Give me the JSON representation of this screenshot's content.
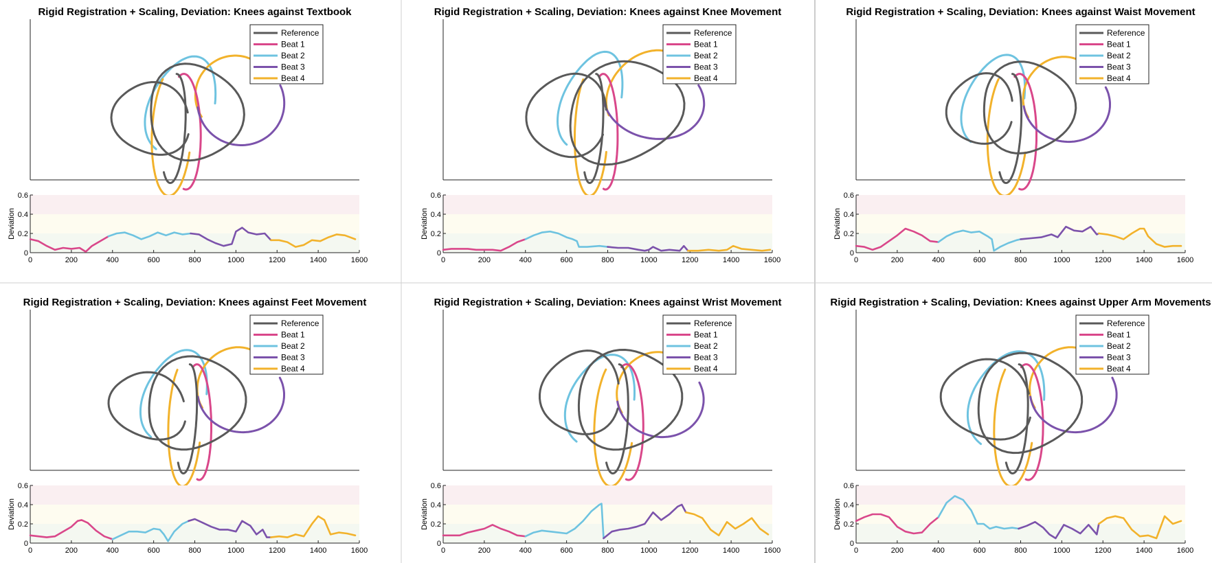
{
  "colors": {
    "reference": "#595959",
    "beat1": "#D9478A",
    "beat2": "#6EC3E0",
    "beat3": "#7B52AB",
    "beat4": "#F2B22B",
    "band_high": "#FAEFF1",
    "band_mid": "#FEFCF0",
    "band_low": "#F4F8F1"
  },
  "legend": [
    "Reference",
    "Beat 1",
    "Beat 2",
    "Beat 3",
    "Beat 4"
  ],
  "deviation_axis": {
    "ylabel": "Deviation",
    "yticks": [
      "0",
      "0.2",
      "0.4",
      "0.6"
    ],
    "ylim": [
      0,
      0.6
    ],
    "xticks": [
      "0",
      "200",
      "400",
      "600",
      "800",
      "1000",
      "1200",
      "1400",
      "1600"
    ],
    "xlim": [
      0,
      1600
    ],
    "bands": [
      [
        0,
        0.2
      ],
      [
        0.2,
        0.4
      ],
      [
        0.4,
        0.6
      ]
    ]
  },
  "chart_data": [
    {
      "type": "line",
      "title": "Rigid Registration + Scaling, Deviation: Knees against Textbook",
      "series": [
        {
          "name": "Beat 1",
          "x": [
            0,
            40,
            80,
            120,
            160,
            200,
            240,
            270,
            300,
            340,
            380
          ],
          "y": [
            0.14,
            0.12,
            0.07,
            0.03,
            0.05,
            0.04,
            0.05,
            0.01,
            0.07,
            0.12,
            0.17
          ]
        },
        {
          "name": "Beat 2",
          "x": [
            380,
            420,
            460,
            500,
            540,
            580,
            620,
            660,
            700,
            740,
            780
          ],
          "y": [
            0.17,
            0.2,
            0.21,
            0.18,
            0.14,
            0.17,
            0.21,
            0.18,
            0.21,
            0.19,
            0.2
          ]
        },
        {
          "name": "Beat 3",
          "x": [
            780,
            820,
            860,
            900,
            940,
            980,
            1000,
            1030,
            1060,
            1100,
            1140,
            1170
          ],
          "y": [
            0.2,
            0.19,
            0.14,
            0.1,
            0.07,
            0.09,
            0.22,
            0.26,
            0.21,
            0.19,
            0.2,
            0.13
          ]
        },
        {
          "name": "Beat 4",
          "x": [
            1170,
            1210,
            1250,
            1290,
            1330,
            1370,
            1410,
            1450,
            1490,
            1530,
            1580
          ],
          "y": [
            0.13,
            0.13,
            0.11,
            0.06,
            0.08,
            0.13,
            0.12,
            0.16,
            0.19,
            0.18,
            0.14
          ]
        }
      ]
    },
    {
      "type": "line",
      "title": "Rigid Registration + Scaling, Deviation: Knees against Knee Movement",
      "series": [
        {
          "name": "Beat 1",
          "x": [
            0,
            40,
            80,
            120,
            160,
            200,
            240,
            280,
            320,
            360,
            400
          ],
          "y": [
            0.03,
            0.04,
            0.04,
            0.04,
            0.03,
            0.03,
            0.03,
            0.02,
            0.06,
            0.11,
            0.14
          ]
        },
        {
          "name": "Beat 2",
          "x": [
            400,
            440,
            480,
            520,
            560,
            600,
            630,
            650,
            660,
            700,
            760,
            800
          ],
          "y": [
            0.14,
            0.18,
            0.21,
            0.22,
            0.2,
            0.16,
            0.14,
            0.12,
            0.06,
            0.06,
            0.07,
            0.06
          ]
        },
        {
          "name": "Beat 3",
          "x": [
            800,
            850,
            900,
            950,
            980,
            1000,
            1020,
            1060,
            1100,
            1150,
            1170,
            1190
          ],
          "y": [
            0.06,
            0.05,
            0.05,
            0.03,
            0.02,
            0.03,
            0.06,
            0.02,
            0.03,
            0.02,
            0.07,
            0.02
          ]
        },
        {
          "name": "Beat 4",
          "x": [
            1190,
            1240,
            1290,
            1340,
            1380,
            1410,
            1450,
            1500,
            1550,
            1590
          ],
          "y": [
            0.02,
            0.02,
            0.03,
            0.02,
            0.03,
            0.07,
            0.04,
            0.03,
            0.02,
            0.03
          ]
        }
      ]
    },
    {
      "type": "line",
      "title": "Rigid Registration + Scaling, Deviation: Knees against Waist Movement",
      "series": [
        {
          "name": "Beat 1",
          "x": [
            0,
            40,
            80,
            120,
            160,
            200,
            240,
            280,
            320,
            360,
            400
          ],
          "y": [
            0.07,
            0.06,
            0.03,
            0.06,
            0.12,
            0.18,
            0.25,
            0.22,
            0.18,
            0.12,
            0.11
          ]
        },
        {
          "name": "Beat 2",
          "x": [
            400,
            440,
            480,
            520,
            560,
            600,
            640,
            660,
            670,
            700,
            740,
            780,
            800
          ],
          "y": [
            0.11,
            0.17,
            0.21,
            0.23,
            0.21,
            0.22,
            0.17,
            0.14,
            0.02,
            0.06,
            0.1,
            0.13,
            0.14
          ]
        },
        {
          "name": "Beat 3",
          "x": [
            800,
            850,
            900,
            950,
            980,
            1020,
            1060,
            1100,
            1140,
            1170,
            1180
          ],
          "y": [
            0.14,
            0.15,
            0.16,
            0.19,
            0.16,
            0.27,
            0.23,
            0.22,
            0.27,
            0.19,
            0.2
          ]
        },
        {
          "name": "Beat 4",
          "x": [
            1180,
            1220,
            1260,
            1300,
            1340,
            1380,
            1400,
            1420,
            1460,
            1500,
            1540,
            1580
          ],
          "y": [
            0.2,
            0.19,
            0.17,
            0.14,
            0.2,
            0.25,
            0.25,
            0.17,
            0.09,
            0.06,
            0.07,
            0.07
          ]
        }
      ]
    },
    {
      "type": "line",
      "title": "Rigid Registration + Scaling, Deviation: Knees against Feet Movement",
      "series": [
        {
          "name": "Beat 1",
          "x": [
            0,
            40,
            80,
            120,
            160,
            200,
            230,
            250,
            280,
            320,
            360,
            400
          ],
          "y": [
            0.08,
            0.07,
            0.06,
            0.07,
            0.12,
            0.17,
            0.23,
            0.24,
            0.21,
            0.13,
            0.07,
            0.04
          ]
        },
        {
          "name": "Beat 2",
          "x": [
            400,
            440,
            480,
            520,
            560,
            600,
            630,
            650,
            670,
            700,
            740,
            770
          ],
          "y": [
            0.04,
            0.08,
            0.12,
            0.12,
            0.11,
            0.15,
            0.14,
            0.09,
            0.02,
            0.12,
            0.2,
            0.23
          ]
        },
        {
          "name": "Beat 3",
          "x": [
            770,
            800,
            840,
            880,
            920,
            960,
            1000,
            1030,
            1070,
            1100,
            1130,
            1150,
            1170
          ],
          "y": [
            0.23,
            0.25,
            0.21,
            0.17,
            0.14,
            0.14,
            0.12,
            0.23,
            0.18,
            0.09,
            0.14,
            0.06,
            0.06
          ]
        },
        {
          "name": "Beat 4",
          "x": [
            1170,
            1210,
            1250,
            1290,
            1330,
            1370,
            1400,
            1430,
            1460,
            1500,
            1540,
            1580
          ],
          "y": [
            0.06,
            0.07,
            0.06,
            0.09,
            0.07,
            0.2,
            0.28,
            0.24,
            0.09,
            0.11,
            0.1,
            0.08
          ]
        }
      ]
    },
    {
      "type": "line",
      "title": "Rigid Registration + Scaling, Deviation: Knees against Wrist Movement",
      "series": [
        {
          "name": "Beat 1",
          "x": [
            0,
            40,
            80,
            120,
            160,
            200,
            240,
            280,
            320,
            360,
            400
          ],
          "y": [
            0.08,
            0.08,
            0.08,
            0.11,
            0.13,
            0.15,
            0.19,
            0.15,
            0.12,
            0.08,
            0.07
          ]
        },
        {
          "name": "Beat 2",
          "x": [
            400,
            440,
            480,
            520,
            560,
            600,
            640,
            680,
            720,
            760,
            770,
            780
          ],
          "y": [
            0.07,
            0.11,
            0.13,
            0.12,
            0.11,
            0.1,
            0.15,
            0.23,
            0.33,
            0.4,
            0.41,
            0.05
          ]
        },
        {
          "name": "Beat 3",
          "x": [
            780,
            820,
            860,
            900,
            940,
            980,
            1020,
            1060,
            1100,
            1140,
            1160,
            1180
          ],
          "y": [
            0.05,
            0.12,
            0.14,
            0.15,
            0.17,
            0.2,
            0.32,
            0.24,
            0.3,
            0.38,
            0.4,
            0.32
          ]
        },
        {
          "name": "Beat 4",
          "x": [
            1180,
            1220,
            1260,
            1300,
            1340,
            1380,
            1420,
            1460,
            1500,
            1540,
            1580
          ],
          "y": [
            0.32,
            0.3,
            0.26,
            0.14,
            0.08,
            0.22,
            0.15,
            0.2,
            0.26,
            0.15,
            0.09
          ]
        }
      ]
    },
    {
      "type": "line",
      "title": "Rigid Registration + Scaling, Deviation: Knees against Upper Arm Movements",
      "series": [
        {
          "name": "Beat 1",
          "x": [
            0,
            40,
            80,
            120,
            160,
            200,
            240,
            280,
            320,
            360,
            400
          ],
          "y": [
            0.23,
            0.27,
            0.3,
            0.3,
            0.27,
            0.17,
            0.12,
            0.1,
            0.11,
            0.2,
            0.27
          ]
        },
        {
          "name": "Beat 2",
          "x": [
            400,
            440,
            480,
            520,
            560,
            590,
            620,
            650,
            680,
            720,
            760,
            790
          ],
          "y": [
            0.27,
            0.42,
            0.49,
            0.45,
            0.34,
            0.2,
            0.2,
            0.15,
            0.17,
            0.15,
            0.16,
            0.15
          ]
        },
        {
          "name": "Beat 3",
          "x": [
            790,
            830,
            870,
            910,
            940,
            970,
            1010,
            1050,
            1090,
            1130,
            1170,
            1180
          ],
          "y": [
            0.15,
            0.18,
            0.22,
            0.16,
            0.09,
            0.05,
            0.19,
            0.15,
            0.1,
            0.19,
            0.09,
            0.2
          ]
        },
        {
          "name": "Beat 4",
          "x": [
            1180,
            1220,
            1260,
            1300,
            1340,
            1380,
            1420,
            1460,
            1500,
            1540,
            1580
          ],
          "y": [
            0.2,
            0.26,
            0.28,
            0.26,
            0.14,
            0.07,
            0.08,
            0.05,
            0.28,
            0.2,
            0.23
          ]
        }
      ]
    }
  ]
}
